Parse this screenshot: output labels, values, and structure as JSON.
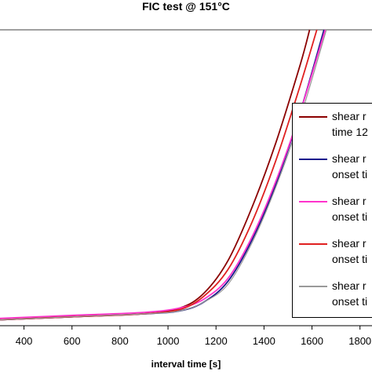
{
  "chart_data": {
    "type": "line",
    "title": "FIC test @ 151°C",
    "xlabel": "interval time [s]",
    "ylabel": "",
    "xlim": [
      300,
      1850
    ],
    "ylim": [
      0,
      1
    ],
    "x_ticks": [
      "400",
      "600",
      "800",
      "1000",
      "1200",
      "1400",
      "1600",
      "1800"
    ],
    "grid": "horizontal line at top of plot",
    "legend_placement": "right",
    "series": [
      {
        "name": "shear r\ntime 12",
        "color": "#8b0000",
        "x": [
          300,
          600,
          900,
          1050,
          1150,
          1250,
          1350,
          1450,
          1550,
          1590
        ],
        "y": [
          0.02,
          0.03,
          0.04,
          0.06,
          0.11,
          0.22,
          0.4,
          0.62,
          0.88,
          1.0
        ]
      },
      {
        "name": "shear r\nonset ti",
        "color": "#1a1a8c",
        "x": [
          300,
          600,
          900,
          1050,
          1150,
          1250,
          1350,
          1450,
          1550,
          1650
        ],
        "y": [
          0.02,
          0.03,
          0.04,
          0.05,
          0.08,
          0.15,
          0.29,
          0.48,
          0.72,
          1.0
        ]
      },
      {
        "name": "shear r\nonset ti",
        "color": "#ff33cc",
        "x": [
          300,
          600,
          900,
          1050,
          1150,
          1250,
          1350,
          1450,
          1550,
          1655
        ],
        "y": [
          0.025,
          0.035,
          0.045,
          0.06,
          0.09,
          0.16,
          0.3,
          0.49,
          0.72,
          1.0
        ]
      },
      {
        "name": "shear r\nonset ti",
        "color": "#e02020",
        "x": [
          300,
          600,
          900,
          1050,
          1150,
          1250,
          1350,
          1450,
          1550,
          1620
        ],
        "y": [
          0.02,
          0.03,
          0.04,
          0.055,
          0.1,
          0.19,
          0.35,
          0.56,
          0.81,
          1.0
        ]
      },
      {
        "name": "shear r\nonset ti",
        "color": "#999999",
        "x": [
          300,
          600,
          900,
          1050,
          1150,
          1250,
          1350,
          1450,
          1550,
          1660
        ],
        "y": [
          0.02,
          0.03,
          0.04,
          0.05,
          0.08,
          0.14,
          0.28,
          0.47,
          0.7,
          1.0
        ]
      }
    ]
  }
}
